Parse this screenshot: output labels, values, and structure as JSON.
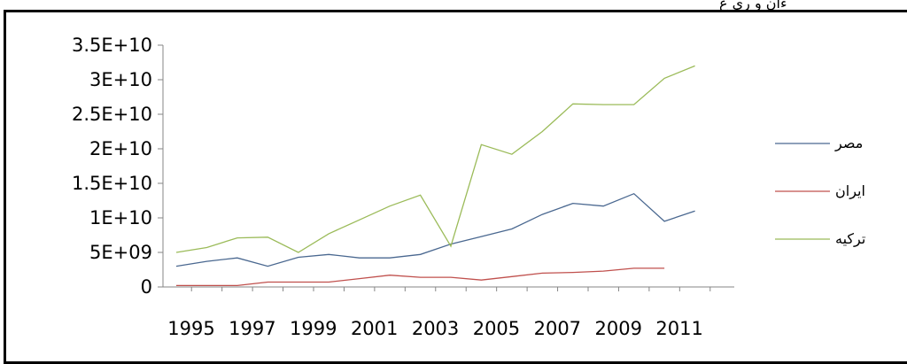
{
  "page": {
    "top_fragment": "ءان و ری ع"
  },
  "chart_data": {
    "type": "line",
    "title": "",
    "xlabel": "",
    "ylabel": "",
    "x": [
      1995,
      1996,
      1997,
      1998,
      1999,
      2000,
      2001,
      2002,
      2003,
      2004,
      2005,
      2006,
      2007,
      2008,
      2009,
      2010,
      2011,
      2012,
      2013
    ],
    "x_tick_labels": [
      "1995",
      "1997",
      "1999",
      "2001",
      "2003",
      "2005",
      "2007",
      "2009",
      "2011"
    ],
    "ylim": [
      0,
      35000000000
    ],
    "y_ticks": [
      0,
      5000000000,
      10000000000,
      15000000000,
      20000000000,
      25000000000,
      30000000000,
      35000000000
    ],
    "y_tick_labels": [
      "0",
      "5E+09",
      "1E+10",
      "1.5E+10",
      "2E+10",
      "2.5E+10",
      "3E+10",
      "3.5E+10"
    ],
    "grid": false,
    "legend_position": "right",
    "series": [
      {
        "name": "مصر",
        "color": "#4a6890",
        "values": [
          3000000000,
          3700000000,
          4200000000,
          3000000000,
          4300000000,
          4700000000,
          4200000000,
          4200000000,
          4700000000,
          6200000000,
          7300000000,
          8400000000,
          10500000000,
          12100000000,
          11700000000,
          13500000000,
          9500000000,
          11000000000,
          null
        ]
      },
      {
        "name": "ایران",
        "color": "#c0504d",
        "values": [
          200000000,
          200000000,
          200000000,
          700000000,
          700000000,
          700000000,
          1200000000,
          1700000000,
          1400000000,
          1400000000,
          1000000000,
          1500000000,
          2000000000,
          2100000000,
          2300000000,
          2700000000,
          2700000000,
          null,
          null
        ]
      },
      {
        "name": "ترکیه",
        "color": "#9bbb59",
        "values": [
          5000000000,
          5700000000,
          7100000000,
          7200000000,
          5000000000,
          7700000000,
          9700000000,
          11700000000,
          13300000000,
          5900000000,
          20600000000,
          19200000000,
          22500000000,
          26500000000,
          26400000000,
          26400000000,
          30200000000,
          32000000000,
          null
        ]
      }
    ]
  }
}
